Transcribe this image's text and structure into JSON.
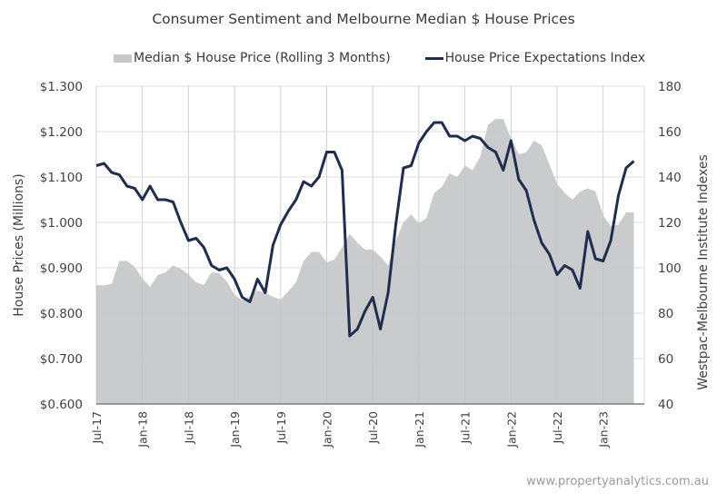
{
  "chart_data": {
    "type": "area+line",
    "title": "Consumer Sentiment and Melbourne Median $ House Prices",
    "legend": {
      "placement": "top-center",
      "entries": [
        {
          "name": "Median $ House Price (Rolling 3 Months)",
          "kind": "area",
          "color": "#c6c8c9"
        },
        {
          "name": "House Price Expectations Index",
          "kind": "line",
          "color": "#1f2d4e"
        }
      ]
    },
    "ylabel_left": "House Prices (Millions)",
    "ylabel_right": "Westpac-Melbourne Institute Indexes",
    "ylim_left": [
      0.6,
      1.3
    ],
    "ylim_right": [
      40,
      180
    ],
    "yticks_left": [
      "$0.600",
      "$0.700",
      "$0.800",
      "$0.900",
      "$1.000",
      "$1.100",
      "$1.200",
      "$1.300"
    ],
    "yticks_right": [
      "40",
      "60",
      "80",
      "100",
      "120",
      "140",
      "160",
      "180"
    ],
    "xticks": [
      "Jul-17",
      "Jan-18",
      "Jul-18",
      "Jan-19",
      "Jul-19",
      "Jan-20",
      "Jul-20",
      "Jan-21",
      "Jul-21",
      "Jan-22",
      "Jul-22",
      "Jan-23"
    ],
    "x_start": "Jul-17",
    "x_step": "month",
    "grid": true,
    "series": [
      {
        "name": "Median $ House Price (Rolling 3 Months)",
        "axis": "left",
        "type": "area",
        "values": [
          0.862,
          0.861,
          0.865,
          0.915,
          0.915,
          0.902,
          0.876,
          0.858,
          0.884,
          0.89,
          0.905,
          0.898,
          0.885,
          0.868,
          0.862,
          0.89,
          0.888,
          0.87,
          0.84,
          0.828,
          0.838,
          0.85,
          0.845,
          0.836,
          0.83,
          0.848,
          0.868,
          0.915,
          0.935,
          0.935,
          0.912,
          0.918,
          0.945,
          0.975,
          0.955,
          0.94,
          0.94,
          0.925,
          0.905,
          0.96,
          1.0,
          1.018,
          0.998,
          1.01,
          1.065,
          1.078,
          1.108,
          1.1,
          1.125,
          1.115,
          1.145,
          1.215,
          1.228,
          1.228,
          1.185,
          1.15,
          1.155,
          1.18,
          1.17,
          1.128,
          1.085,
          1.065,
          1.05,
          1.068,
          1.075,
          1.068,
          1.015,
          0.992,
          0.995,
          1.022,
          1.022
        ]
      },
      {
        "name": "House Price Expectations Index",
        "axis": "right",
        "type": "line",
        "values": [
          145,
          146,
          142,
          141,
          136,
          135,
          130,
          136,
          130,
          130,
          129,
          120,
          112,
          113,
          109,
          101,
          99,
          100,
          95,
          87,
          85,
          95,
          89,
          110,
          119,
          125,
          130,
          138,
          136,
          140,
          151,
          151,
          143,
          70,
          73,
          81,
          87,
          73,
          89,
          119,
          144,
          145,
          155,
          160,
          164,
          164,
          158,
          158,
          156,
          158,
          157,
          153,
          151,
          143,
          156,
          139,
          134,
          121,
          111,
          106,
          97,
          101,
          99,
          91,
          116,
          104,
          103,
          112,
          132,
          144,
          147
        ]
      }
    ]
  },
  "watermark": "www.propertyanalytics.com.au"
}
